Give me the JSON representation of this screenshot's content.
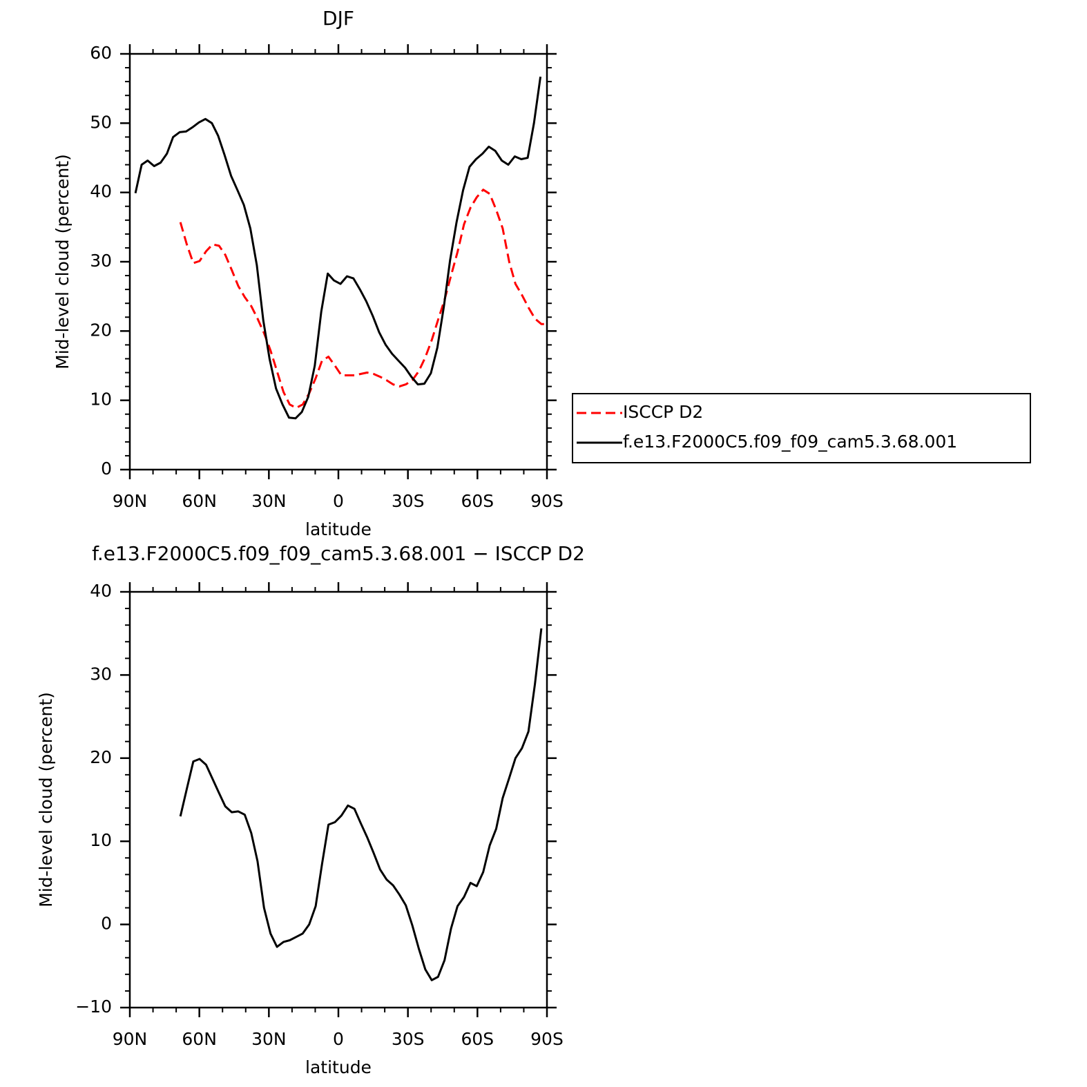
{
  "chart_data": [
    {
      "type": "line",
      "title": "DJF",
      "xlabel": "latitude",
      "ylabel": "Mid-level cloud (percent)",
      "xlim": [
        90,
        -90
      ],
      "xticks": [
        {
          "value": 90,
          "label": "90N"
        },
        {
          "value": 60,
          "label": "60N"
        },
        {
          "value": 30,
          "label": "30N"
        },
        0,
        {
          "value": -30,
          "label": "30S"
        },
        {
          "value": -60,
          "label": "60S"
        },
        {
          "value": -90,
          "label": "90S"
        }
      ],
      "ylim": [
        0,
        60
      ],
      "yticks": [
        0,
        10,
        20,
        30,
        40,
        50,
        60
      ],
      "legend": "right",
      "series": [
        {
          "name": "ISCCP D2",
          "color": "#ff0000",
          "dash": true,
          "x": [
            68.2,
            65.4,
            62.6,
            59.9,
            57.1,
            54.3,
            51.5,
            48.8,
            46,
            43.2,
            40.4,
            37.6,
            34.9,
            32.1,
            29.3,
            26.5,
            23.7,
            21,
            18.2,
            15.4,
            12.6,
            9.8,
            7.1,
            4.3,
            1.5,
            -1.3,
            -4.1,
            -6.9,
            -9.6,
            -12.4,
            -15.2,
            -18,
            -20.8,
            -23.6,
            -26.3,
            -29.1,
            -31.9,
            -34.7,
            -37.5,
            -40.3,
            -43,
            -45.8,
            -48.6,
            -51.4,
            -54.2,
            -57,
            -59.7,
            -62.5,
            -65.3,
            -68.1,
            -70.9,
            -73.7,
            -76.4,
            -79.2,
            -82,
            -84.8,
            -87.6,
            -89
          ],
          "values": [
            35.7,
            32.5,
            29.8,
            30.1,
            31.5,
            32.5,
            32.3,
            31,
            28.8,
            26.5,
            24.9,
            23.6,
            21.8,
            19.7,
            17.2,
            14.2,
            11.2,
            9.4,
            8.9,
            9.4,
            11,
            13.2,
            15.7,
            16.3,
            15,
            13.6,
            13.6,
            13.6,
            13.8,
            14,
            13.8,
            13.4,
            12.9,
            12.3,
            12,
            12.3,
            12.9,
            14.2,
            16.2,
            18.7,
            21.6,
            24.5,
            28,
            31.4,
            35.4,
            37.8,
            39.3,
            40.4,
            39.8,
            37.5,
            34.8,
            30,
            26.8,
            25.2,
            23.4,
            21.8,
            21,
            21
          ]
        },
        {
          "name": "f.e13.F2000C5.f09_f09_cam5.3.68.001",
          "color": "#000000",
          "dash": false,
          "x": [
            87.6,
            84.9,
            82.3,
            79.5,
            76.7,
            74,
            71.3,
            68.5,
            65.7,
            63,
            60.2,
            57.4,
            54.6,
            51.9,
            49.1,
            46.3,
            43.5,
            40.8,
            38,
            35.2,
            32.4,
            29.7,
            26.9,
            24.1,
            21.3,
            18.5,
            15.8,
            13,
            10.2,
            7.4,
            4.6,
            1.9,
            -0.9,
            -3.7,
            -6.5,
            -9.3,
            -12,
            -14.8,
            -17.6,
            -20.4,
            -23.2,
            -26,
            -28.8,
            -31.5,
            -34.3,
            -37.1,
            -39.9,
            -42.7,
            -45.5,
            -48.2,
            -51,
            -53.8,
            -56.6,
            -59.4,
            -62.2,
            -64.9,
            -67.7,
            -70.5,
            -73.3,
            -76.1,
            -78.9,
            -81.7,
            -84.4,
            -87.2
          ],
          "values": [
            39.9,
            44,
            44.6,
            43.8,
            44.3,
            45.6,
            48,
            48.7,
            48.8,
            49.4,
            50.1,
            50.6,
            50,
            48.2,
            45.4,
            42.4,
            40.3,
            38.2,
            34.8,
            29.5,
            21.5,
            16,
            11.7,
            9.4,
            7.5,
            7.4,
            8.3,
            10.5,
            15,
            22.8,
            28.3,
            27.3,
            26.8,
            27.9,
            27.6,
            26,
            24.3,
            22.2,
            19.8,
            18,
            16.7,
            15.7,
            14.7,
            13.4,
            12.3,
            12.4,
            13.9,
            17.6,
            23.5,
            30.2,
            35.7,
            40.3,
            43.7,
            44.8,
            45.6,
            46.6,
            46,
            44.6,
            44,
            45.2,
            44.8,
            45,
            50,
            56.7
          ]
        }
      ]
    },
    {
      "type": "line",
      "title": "f.e13.F2000C5.f09_f09_cam5.3.68.001 − ISCCP D2",
      "xlabel": "latitude",
      "ylabel": "Mid-level cloud (percent)",
      "xlim": [
        90,
        -90
      ],
      "xticks": [
        {
          "value": 90,
          "label": "90N"
        },
        {
          "value": 60,
          "label": "60N"
        },
        {
          "value": 30,
          "label": "30N"
        },
        0,
        {
          "value": -30,
          "label": "30S"
        },
        {
          "value": -60,
          "label": "60S"
        },
        {
          "value": -90,
          "label": "90S"
        }
      ],
      "ylim": [
        -10,
        40
      ],
      "yticks": [
        {
          "value": -10,
          "label": "−10"
        },
        0,
        10,
        20,
        30,
        40
      ],
      "series": [
        {
          "color": "#000000",
          "dash": false,
          "x": [
            68.2,
            65.4,
            62.6,
            59.9,
            57.1,
            54.3,
            51.5,
            48.8,
            46,
            43.2,
            40.4,
            37.6,
            34.9,
            32.1,
            29.3,
            26.5,
            23.7,
            21,
            18.2,
            15.4,
            12.6,
            9.8,
            7.1,
            4.3,
            1.5,
            -1.3,
            -4.1,
            -6.9,
            -9.6,
            -12.4,
            -15.2,
            -18,
            -20.8,
            -23.6,
            -26.3,
            -29.1,
            -31.9,
            -34.7,
            -37.5,
            -40.3,
            -43,
            -45.8,
            -48.6,
            -51.4,
            -54.2,
            -57,
            -59.7,
            -62.5,
            -65.3,
            -68.1,
            -70.9,
            -73.7,
            -76.4,
            -79.2,
            -82,
            -84.8,
            -87.6
          ],
          "values": [
            13,
            16.3,
            19.6,
            19.9,
            19.2,
            17.5,
            15.8,
            14.2,
            13.5,
            13.6,
            13.2,
            11,
            7.6,
            2,
            -1.1,
            -2.7,
            -2.1,
            -1.9,
            -1.5,
            -1.1,
            0,
            2.2,
            7.2,
            12,
            12.3,
            13.1,
            14.3,
            13.9,
            12.2,
            10.5,
            8.6,
            6.6,
            5.4,
            4.7,
            3.6,
            2.3,
            -0.1,
            -2.9,
            -5.4,
            -6.7,
            -6.3,
            -4.3,
            -0.5,
            2.2,
            3.3,
            5,
            4.6,
            6.3,
            9.5,
            11.5,
            15.2,
            17.6,
            20,
            21.2,
            23.2,
            28.9,
            35.6
          ]
        }
      ]
    }
  ]
}
